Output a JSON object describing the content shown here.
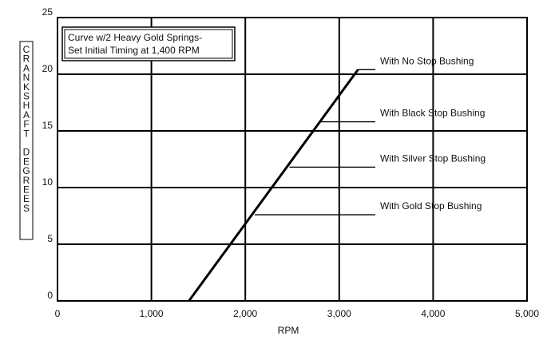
{
  "chart_data": {
    "type": "line",
    "title": "",
    "xlabel": "RPM",
    "ylabel": "CRANKSHAFT DEGREES",
    "xlim": [
      0,
      5000
    ],
    "ylim": [
      0,
      25
    ],
    "x_ticks": [
      {
        "value": 0,
        "label": "0"
      },
      {
        "value": 1000,
        "label": "1,000"
      },
      {
        "value": 2000,
        "label": "2,000"
      },
      {
        "value": 3000,
        "label": "3,000"
      },
      {
        "value": 4000,
        "label": "4,000"
      },
      {
        "value": 5000,
        "label": "5,000"
      }
    ],
    "y_ticks": [
      {
        "value": 0,
        "label": "0"
      },
      {
        "value": 5,
        "label": "5"
      },
      {
        "value": 10,
        "label": "10"
      },
      {
        "value": 15,
        "label": "15"
      },
      {
        "value": 20,
        "label": "20"
      },
      {
        "value": 25,
        "label": "25"
      }
    ],
    "grid": true,
    "legend": "none",
    "series": [
      {
        "values": [
          {
            "x": 1400,
            "y": 0
          },
          {
            "x": 3200,
            "y": 20.4
          }
        ],
        "color": "#000000"
      }
    ],
    "info_box": {
      "lines": [
        "Curve w/2 Heavy Gold Springs-",
        "Set Initial Timing at 1,400 RPM"
      ]
    },
    "annotations": [
      {
        "label": "With No Stop Bushing",
        "x": 3200,
        "y": 20.4
      },
      {
        "label": "With Black Stop Bushing",
        "x": 2800,
        "y": 15.8
      },
      {
        "label": "With Silver Stop Bushing",
        "x": 2470,
        "y": 11.8
      },
      {
        "label": "With Gold Stop Bushing",
        "x": 2100,
        "y": 7.6
      }
    ]
  }
}
